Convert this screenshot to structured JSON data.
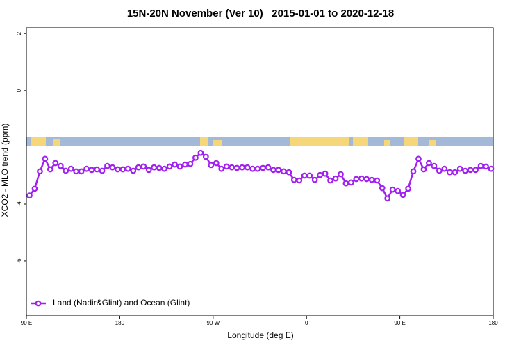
{
  "chart_data": {
    "type": "line",
    "title": "15N-20N November (Ver 10)   2015-01-01 to 2020-12-18",
    "x_label": "Longitude (deg E)",
    "y_label": "XCO2 - MLO trend (ppm)",
    "xlim": [
      90,
      540
    ],
    "ylim": [
      -7.93,
      2.2
    ],
    "xticks": [
      {
        "value": 90,
        "label": "90 E"
      },
      180,
      {
        "value": 270,
        "label": "90 W"
      },
      {
        "value": 360,
        "label": "0"
      },
      {
        "value": 450,
        "label": "90 E"
      },
      {
        "value": 540,
        "label": "180"
      }
    ],
    "yticks": [
      2,
      0,
      -4,
      -6
    ],
    "legend_position": "bottom-left",
    "x": [
      93,
      98,
      103,
      108,
      113,
      118,
      123,
      128,
      133,
      138,
      143,
      148,
      153,
      158,
      163,
      168,
      173,
      178,
      183,
      188,
      193,
      198,
      203,
      208,
      213,
      218,
      223,
      228,
      233,
      238,
      243,
      248,
      253,
      258,
      263,
      268,
      273,
      278,
      283,
      288,
      293,
      298,
      303,
      308,
      313,
      318,
      323,
      328,
      333,
      338,
      343,
      348,
      353,
      358,
      363,
      368,
      373,
      378,
      383,
      388,
      393,
      398,
      403,
      408,
      413,
      418,
      423,
      428,
      433,
      438,
      443,
      448,
      453,
      458,
      463,
      468,
      473,
      478,
      483,
      488,
      493,
      498,
      503,
      508,
      513,
      518,
      523,
      528,
      533,
      538
    ],
    "series": [
      {
        "name": "Land (Nadir&Glint) and Ocean (Glint)",
        "color": "#a020f0",
        "values": [
          -3.7,
          -3.46,
          -2.85,
          -2.41,
          -2.78,
          -2.56,
          -2.66,
          -2.83,
          -2.76,
          -2.85,
          -2.85,
          -2.76,
          -2.8,
          -2.78,
          -2.83,
          -2.66,
          -2.71,
          -2.78,
          -2.78,
          -2.76,
          -2.83,
          -2.71,
          -2.68,
          -2.8,
          -2.71,
          -2.73,
          -2.76,
          -2.68,
          -2.61,
          -2.68,
          -2.61,
          -2.59,
          -2.37,
          -2.2,
          -2.34,
          -2.63,
          -2.56,
          -2.76,
          -2.68,
          -2.71,
          -2.73,
          -2.71,
          -2.71,
          -2.76,
          -2.76,
          -2.73,
          -2.71,
          -2.8,
          -2.8,
          -2.85,
          -2.88,
          -3.15,
          -3.17,
          -3.0,
          -3.0,
          -3.15,
          -2.98,
          -2.93,
          -3.17,
          -3.1,
          -2.95,
          -3.27,
          -3.24,
          -3.12,
          -3.1,
          -3.12,
          -3.15,
          -3.17,
          -3.44,
          -3.8,
          -3.49,
          -3.54,
          -3.68,
          -3.46,
          -2.85,
          -2.41,
          -2.78,
          -2.56,
          -2.66,
          -2.83,
          -2.76,
          -2.88,
          -2.88,
          -2.76,
          -2.83,
          -2.8,
          -2.8,
          -2.66,
          -2.68,
          -2.76
        ]
      }
    ]
  }
}
